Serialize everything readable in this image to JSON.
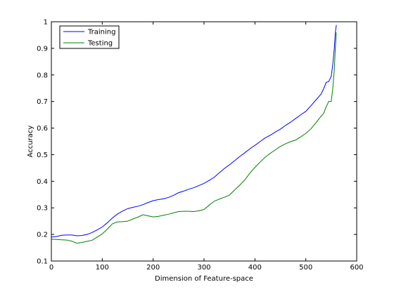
{
  "chart_data": {
    "type": "line",
    "title": "",
    "xlabel": "Dimension of Feature-space",
    "ylabel": "Accuracy",
    "xlim": [
      0,
      600
    ],
    "ylim": [
      0.1,
      1.0
    ],
    "xticks": [
      0,
      100,
      200,
      300,
      400,
      500,
      600
    ],
    "yticks": [
      0.1,
      0.2,
      0.3,
      0.4,
      0.5,
      0.6,
      0.7,
      0.8,
      0.9,
      1.0
    ],
    "ytick_labels": [
      "0.1",
      "0.2",
      "0.3",
      "0.4",
      "0.5",
      "0.6",
      "0.7",
      "0.8",
      "0.9",
      "1"
    ],
    "grid": false,
    "legend_position": "top-left",
    "series": [
      {
        "name": "Training",
        "color": "#0000ff",
        "x": [
          0,
          10,
          20,
          30,
          40,
          50,
          60,
          70,
          80,
          90,
          100,
          110,
          120,
          130,
          140,
          150,
          160,
          170,
          180,
          190,
          200,
          210,
          220,
          230,
          240,
          250,
          260,
          270,
          280,
          290,
          300,
          310,
          320,
          330,
          340,
          350,
          360,
          370,
          380,
          390,
          400,
          410,
          420,
          430,
          440,
          450,
          460,
          470,
          480,
          490,
          500,
          510,
          520,
          530,
          535,
          540,
          545,
          550,
          553,
          556,
          558,
          560
        ],
        "y": [
          0.19,
          0.192,
          0.197,
          0.198,
          0.198,
          0.195,
          0.196,
          0.2,
          0.207,
          0.217,
          0.228,
          0.244,
          0.262,
          0.277,
          0.288,
          0.297,
          0.302,
          0.306,
          0.312,
          0.32,
          0.327,
          0.331,
          0.334,
          0.339,
          0.347,
          0.357,
          0.363,
          0.37,
          0.376,
          0.384,
          0.392,
          0.403,
          0.415,
          0.432,
          0.448,
          0.462,
          0.477,
          0.493,
          0.507,
          0.522,
          0.535,
          0.549,
          0.563,
          0.573,
          0.585,
          0.596,
          0.61,
          0.622,
          0.636,
          0.65,
          0.663,
          0.684,
          0.706,
          0.728,
          0.748,
          0.772,
          0.775,
          0.795,
          0.84,
          0.9,
          0.96,
          0.988
        ]
      },
      {
        "name": "Testing",
        "color": "#008000",
        "x": [
          0,
          10,
          20,
          30,
          40,
          50,
          60,
          70,
          80,
          90,
          100,
          110,
          120,
          130,
          140,
          150,
          160,
          170,
          180,
          190,
          200,
          210,
          220,
          230,
          240,
          250,
          260,
          270,
          280,
          290,
          300,
          310,
          320,
          330,
          340,
          350,
          360,
          370,
          380,
          390,
          400,
          410,
          420,
          430,
          440,
          450,
          460,
          470,
          480,
          490,
          500,
          510,
          520,
          530,
          535,
          540,
          545,
          550,
          553,
          556,
          558,
          560
        ],
        "y": [
          0.182,
          0.181,
          0.18,
          0.179,
          0.175,
          0.167,
          0.17,
          0.174,
          0.178,
          0.19,
          0.202,
          0.22,
          0.24,
          0.247,
          0.248,
          0.25,
          0.258,
          0.265,
          0.274,
          0.27,
          0.266,
          0.268,
          0.272,
          0.276,
          0.281,
          0.286,
          0.287,
          0.287,
          0.286,
          0.289,
          0.294,
          0.31,
          0.325,
          0.333,
          0.34,
          0.348,
          0.367,
          0.385,
          0.405,
          0.43,
          0.452,
          0.472,
          0.49,
          0.505,
          0.518,
          0.531,
          0.541,
          0.549,
          0.555,
          0.567,
          0.58,
          0.597,
          0.62,
          0.645,
          0.655,
          0.68,
          0.7,
          0.7,
          0.75,
          0.82,
          0.9,
          0.96
        ]
      }
    ]
  }
}
